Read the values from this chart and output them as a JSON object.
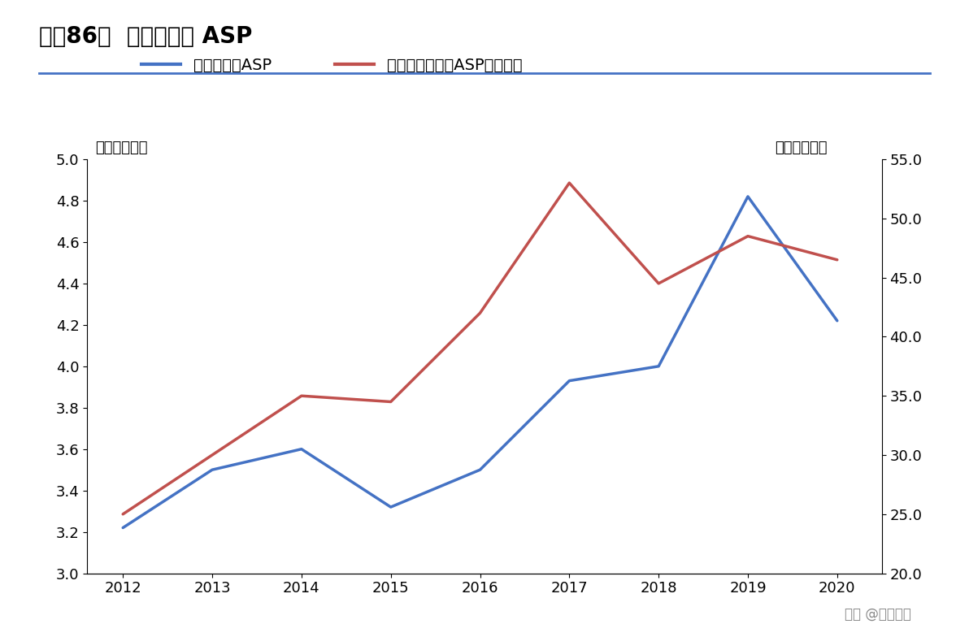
{
  "title": "图表86：  舜宇：手镜 ASP",
  "years": [
    2012,
    2013,
    2014,
    2015,
    2016,
    2017,
    2018,
    2019,
    2020
  ],
  "blue_values": [
    3.22,
    3.5,
    3.6,
    3.32,
    3.5,
    3.93,
    4.0,
    4.82,
    4.22
  ],
  "red_values": [
    25.0,
    30.0,
    35.0,
    34.5,
    42.0,
    53.0,
    44.5,
    48.5,
    46.5
  ],
  "blue_label": "手机镜头组ASP",
  "red_label": "手机摄像头模组ASP（右轴）",
  "left_unit": "（人民币元）",
  "right_unit": "（人民币元）",
  "ylim_left": [
    3.0,
    5.0
  ],
  "ylim_right": [
    20.0,
    55.0
  ],
  "yticks_left": [
    3.0,
    3.2,
    3.4,
    3.6,
    3.8,
    4.0,
    4.2,
    4.4,
    4.6,
    4.8,
    5.0
  ],
  "yticks_right": [
    20.0,
    25.0,
    30.0,
    35.0,
    40.0,
    45.0,
    50.0,
    55.0
  ],
  "blue_color": "#4472C4",
  "red_color": "#C0504D",
  "background_color": "#FFFFFF",
  "title_fontsize": 20,
  "unit_fontsize": 13,
  "tick_fontsize": 13,
  "legend_fontsize": 14,
  "watermark": "头条 @未来智库",
  "watermark_fontsize": 12,
  "xlim": [
    2011.6,
    2020.5
  ]
}
